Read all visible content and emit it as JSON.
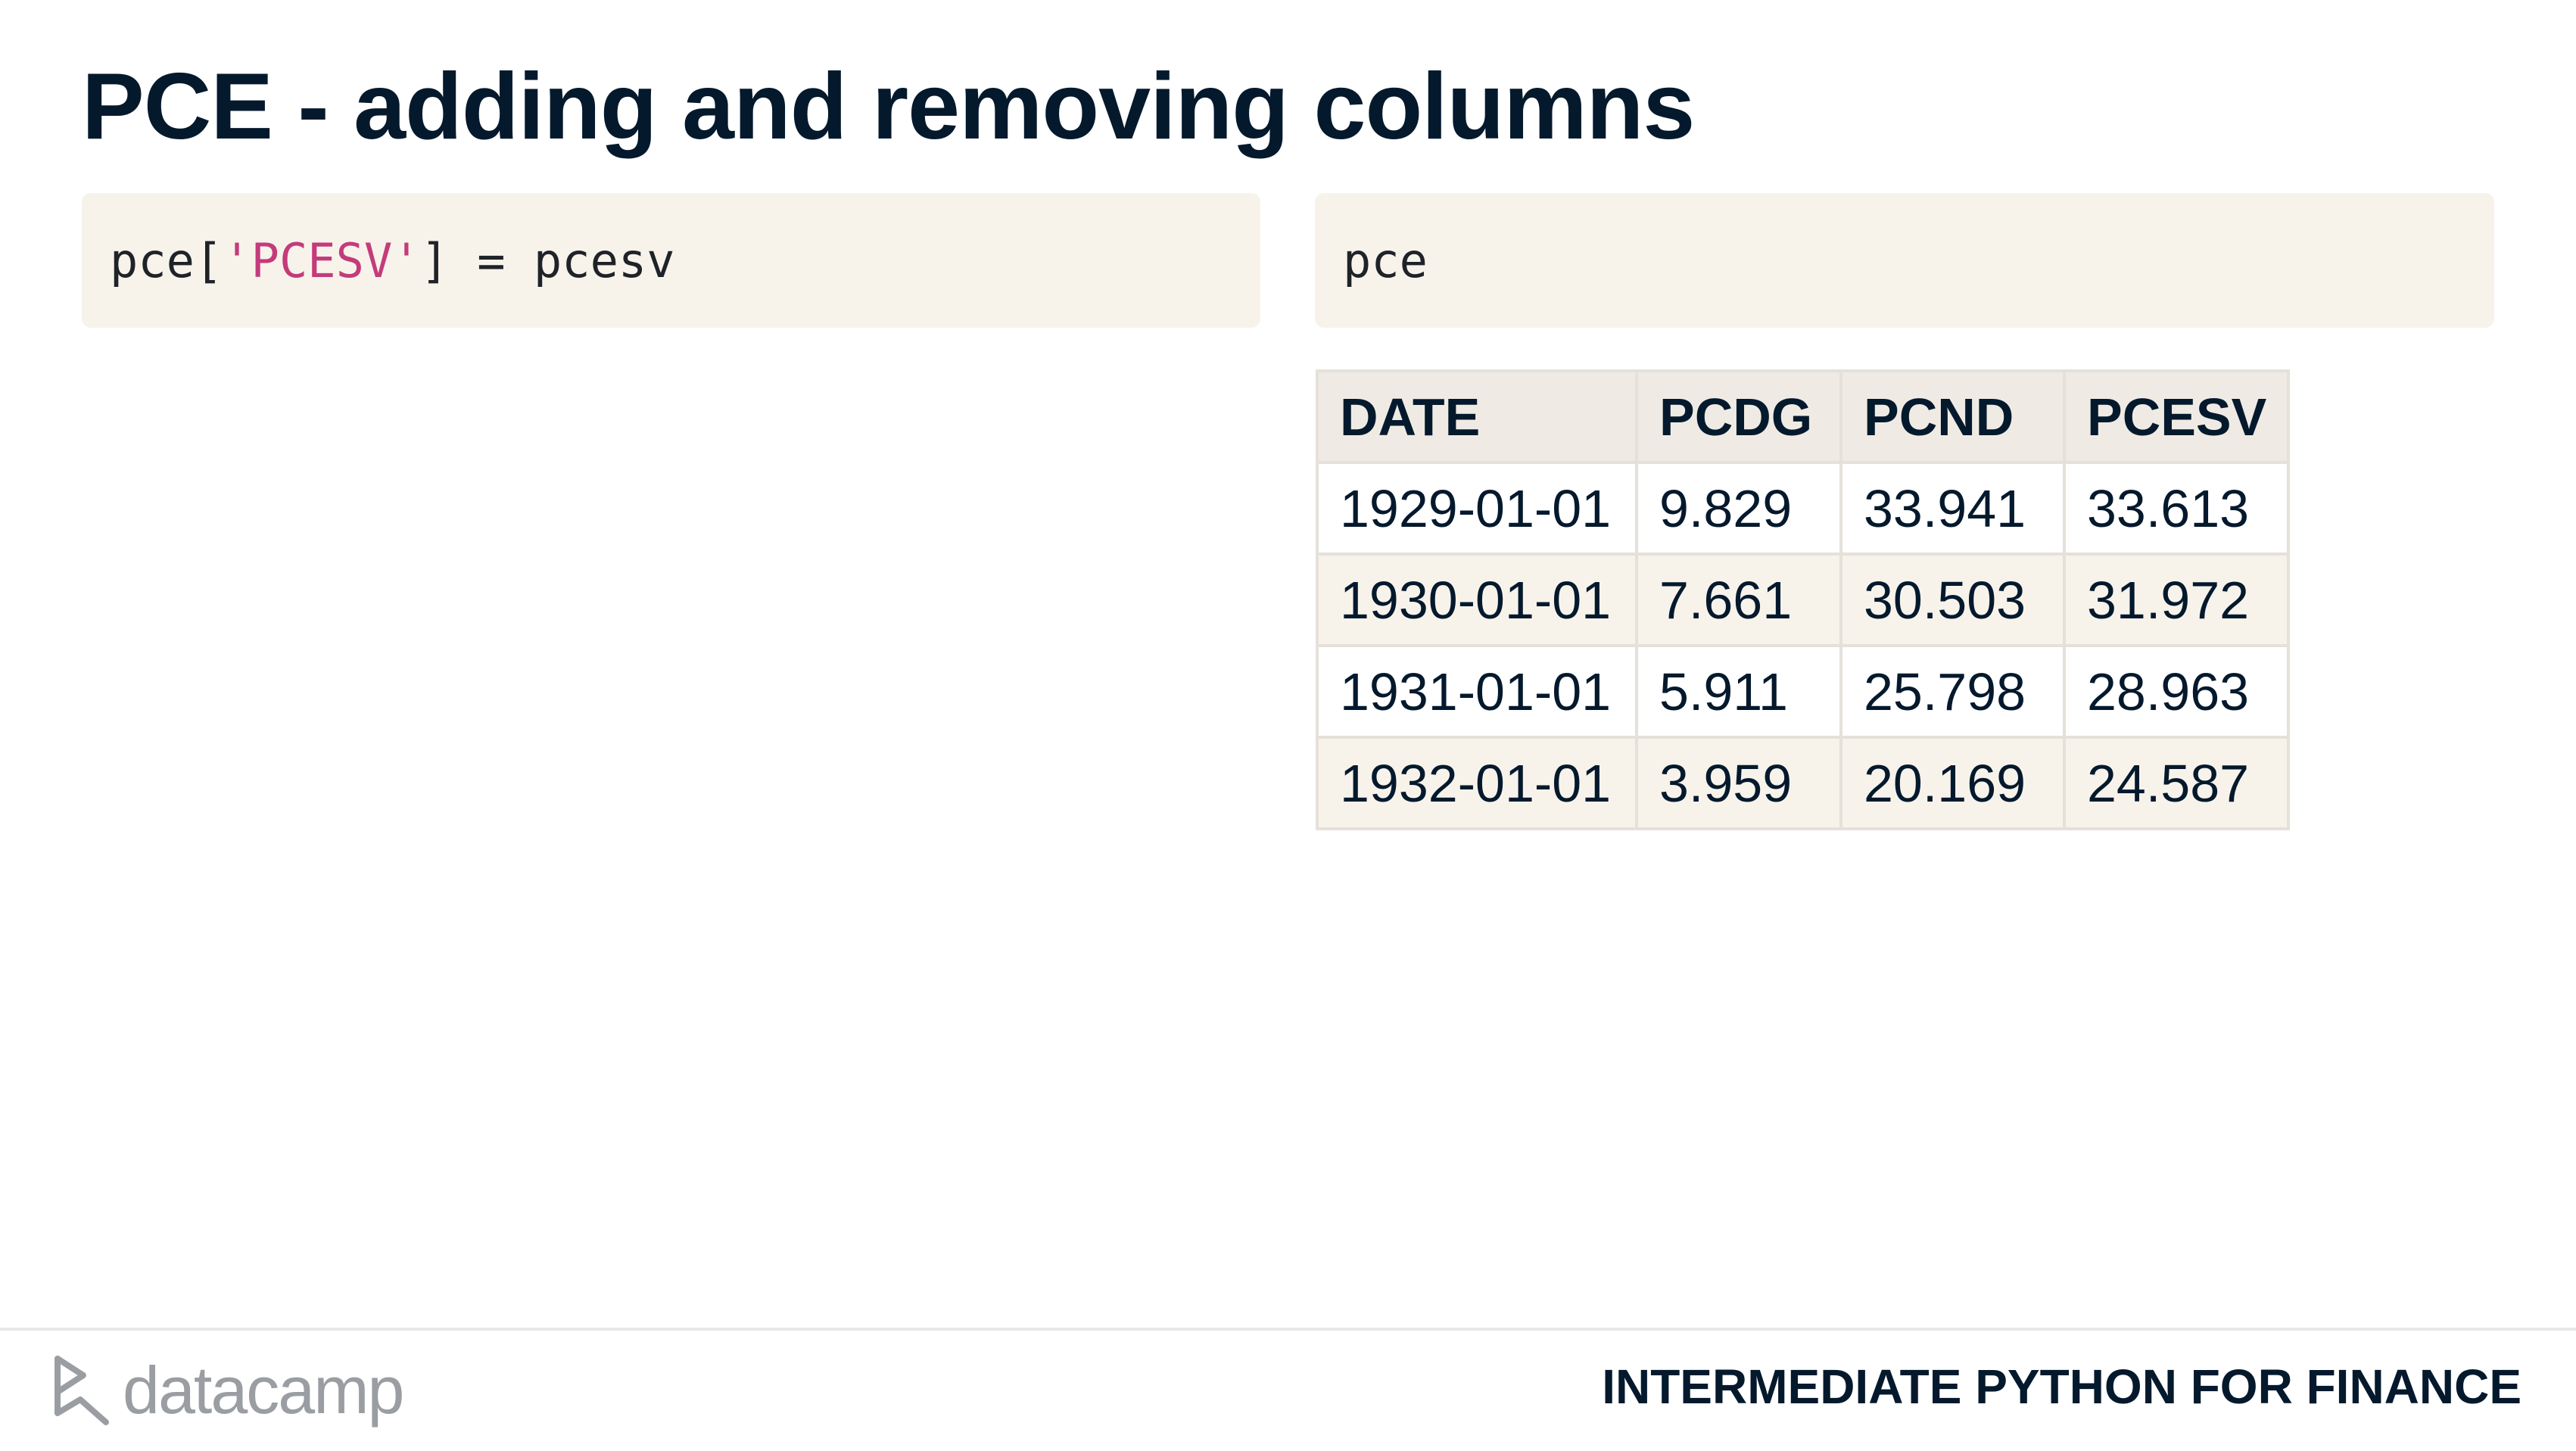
{
  "slide": {
    "title": "PCE - adding and removing columns"
  },
  "code": {
    "left": {
      "prefix": "pce[",
      "string": "'PCESV'",
      "suffix": "] = pcesv"
    },
    "right": {
      "text": "pce"
    }
  },
  "table": {
    "columns": [
      "DATE",
      "PCDG",
      "PCND",
      "PCESV"
    ],
    "rows": [
      [
        "1929-01-01",
        "9.829",
        "33.941",
        "33.613"
      ],
      [
        "1930-01-01",
        "7.661",
        "30.503",
        "31.972"
      ],
      [
        "1931-01-01",
        "5.911",
        "25.798",
        "28.963"
      ],
      [
        "1932-01-01",
        "3.959",
        "20.169",
        "24.587"
      ]
    ]
  },
  "footer": {
    "logo_text": "datacamp",
    "logo_icon": "datacamp-logo-icon",
    "course": "INTERMEDIATE PYTHON FOR FINANCE"
  },
  "colors": {
    "title": "#05192d",
    "code_background": "#f7f3eb",
    "string_literal": "#c43b7a",
    "logo": "#9a9ea3"
  }
}
